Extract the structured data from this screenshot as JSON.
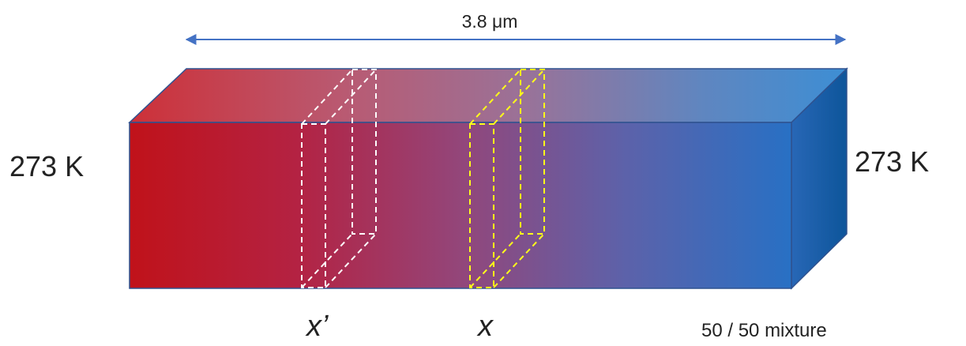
{
  "labels": {
    "width": "3.8 μm",
    "left_temperature": "273 K",
    "right_temperature": "273 K",
    "slab_x_prime": "x’",
    "slab_x": "x",
    "composition": "50 / 50 mixture"
  },
  "colors": {
    "hot_red": "#c0121a",
    "mid_purple": "#9a4474",
    "cool_blue": "#2f70c0",
    "deep_blue": "#1f5fa8",
    "arrow": "#4472c4",
    "slab_x_prime_outline": "#ffffff",
    "slab_x_outline": "#ffff1a"
  }
}
